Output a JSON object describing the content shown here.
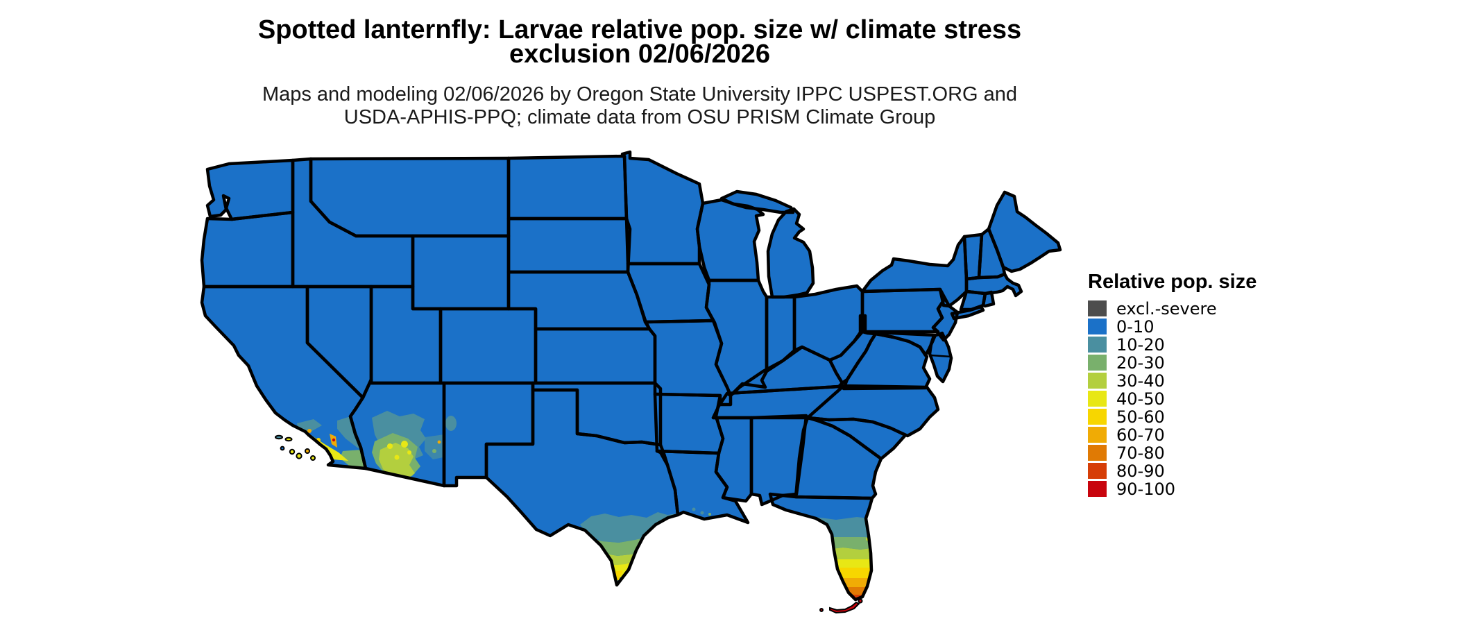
{
  "title": {
    "line1": "Spotted lanternfly: Larvae relative pop. size w/ climate stress",
    "line2": "exclusion 02/06/2026"
  },
  "subtitle": {
    "line1": "Maps and modeling 02/06/2026 by Oregon State University IPPC USPEST.ORG and",
    "line2": "USDA-APHIS-PPQ; climate data from OSU PRISM Climate Group"
  },
  "legend": {
    "title": "Relative pop. size",
    "items": [
      {
        "label": "excl.-severe",
        "key": "excl_severe"
      },
      {
        "label": "0-10",
        "key": "v0_10"
      },
      {
        "label": "10-20",
        "key": "v10_20"
      },
      {
        "label": "20-30",
        "key": "v20_30"
      },
      {
        "label": "30-40",
        "key": "v30_40"
      },
      {
        "label": "40-50",
        "key": "v40_50"
      },
      {
        "label": "50-60",
        "key": "v50_60"
      },
      {
        "label": "60-70",
        "key": "v60_70"
      },
      {
        "label": "70-80",
        "key": "v70_80"
      },
      {
        "label": "80-90",
        "key": "v80_90"
      },
      {
        "label": "90-100",
        "key": "v90_100"
      }
    ]
  },
  "palette": {
    "excl_severe": "#4d4d4d",
    "v0_10": "#1b71c8",
    "v10_20": "#4a8fa0",
    "v20_30": "#79b06c",
    "v30_40": "#b3cf3e",
    "v40_50": "#e8e715",
    "v50_60": "#f7d600",
    "v60_70": "#f0ab05",
    "v70_80": "#e07a04",
    "v80_90": "#d63e07",
    "v90_100": "#c8040d"
  },
  "map": {
    "type": "thematic-us-map",
    "region": "contiguous United States",
    "background": "#ffffff",
    "border_color": "#000000",
    "base_value_class": "0-10",
    "elevated_regions": [
      "southern California coast",
      "southwestern Arizona",
      "southern Texas",
      "Florida peninsula (increasing southward to 90-100 at the Keys)"
    ]
  }
}
